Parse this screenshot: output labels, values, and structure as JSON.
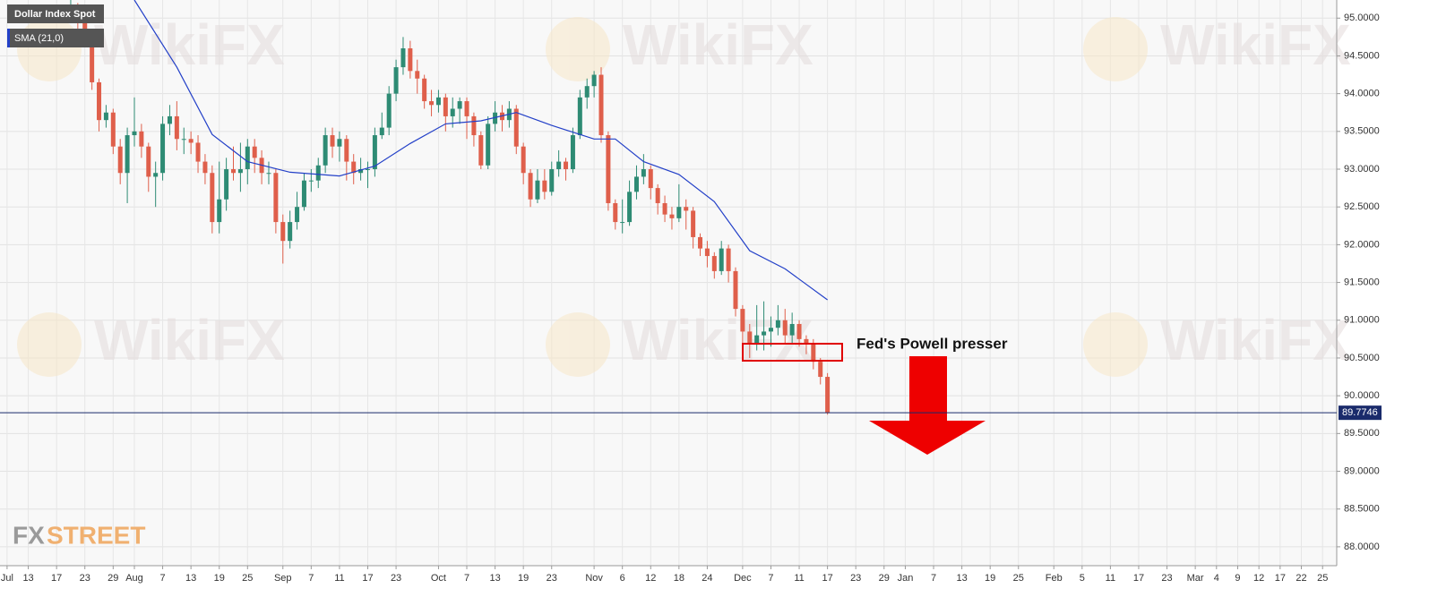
{
  "chart_data": {
    "type": "candlestick",
    "series": [
      {
        "name": "Dollar Index Spot",
        "up_color": "#2e8b74",
        "down_color": "#df5f4b",
        "x": [
          10,
          11,
          12,
          13,
          14,
          15,
          16,
          17,
          18,
          19,
          20,
          21,
          22,
          23,
          24,
          25,
          26,
          27,
          28,
          29,
          30,
          31,
          32,
          33,
          34,
          35,
          36,
          37,
          38,
          39,
          40,
          41,
          42,
          43,
          44,
          45,
          46,
          47,
          48,
          49,
          50,
          51,
          52,
          53,
          54,
          55,
          56,
          57,
          58,
          59,
          60,
          61,
          62,
          63,
          64,
          65,
          66,
          67,
          68,
          69,
          70,
          71,
          72,
          73,
          74,
          75,
          76,
          77,
          78,
          79,
          80,
          81,
          82,
          83,
          84,
          85,
          86,
          87,
          88,
          89,
          90,
          91,
          92,
          93,
          94,
          95,
          96,
          97,
          98,
          99,
          100,
          101,
          102,
          103,
          104,
          105,
          106,
          107,
          108,
          109,
          110,
          111,
          112,
          113,
          114,
          115,
          116,
          117
        ],
        "open": [
          95.05,
          95.15,
          94.95,
          94.8,
          94.15,
          93.65,
          93.75,
          93.3,
          92.95,
          93.45,
          93.5,
          93.3,
          92.9,
          92.95,
          93.6,
          93.7,
          93.4,
          93.4,
          93.35,
          93.1,
          92.95,
          92.3,
          92.6,
          93.0,
          92.95,
          93.0,
          93.3,
          93.15,
          92.95,
          92.95,
          92.3,
          92.05,
          92.3,
          92.5,
          92.85,
          92.85,
          93.05,
          93.45,
          93.3,
          93.4,
          93.1,
          92.95,
          93.0,
          93.0,
          93.45,
          93.55,
          94.0,
          94.35,
          94.6,
          94.3,
          94.2,
          93.9,
          93.85,
          93.95,
          93.7,
          93.8,
          93.9,
          93.7,
          93.45,
          93.05,
          93.6,
          93.75,
          93.65,
          93.8,
          93.3,
          92.95,
          92.6,
          92.85,
          92.7,
          93.0,
          93.1,
          93.0,
          93.45,
          93.95,
          94.1,
          94.25,
          93.45,
          92.55,
          92.3,
          92.3,
          92.7,
          92.9,
          93.0,
          92.75,
          92.55,
          92.4,
          92.35,
          92.5,
          92.45,
          92.1,
          91.95,
          91.85,
          91.65,
          91.95,
          91.65,
          91.15,
          90.85,
          90.7,
          90.8,
          90.85,
          90.9,
          91.0,
          90.8,
          90.95,
          90.75,
          90.7,
          90.45,
          90.25
        ],
        "high": [
          95.25,
          95.2,
          95.0,
          94.85,
          94.2,
          93.85,
          93.8,
          93.4,
          93.55,
          93.95,
          93.6,
          93.35,
          93.1,
          93.7,
          93.85,
          93.9,
          93.55,
          93.5,
          93.45,
          93.2,
          93.05,
          93.1,
          93.15,
          93.3,
          93.35,
          93.4,
          93.4,
          93.25,
          93.1,
          93.0,
          92.4,
          92.45,
          92.7,
          92.95,
          93.0,
          93.15,
          93.55,
          93.55,
          93.5,
          93.45,
          93.2,
          93.15,
          93.1,
          93.55,
          93.75,
          94.1,
          94.45,
          94.75,
          94.7,
          94.45,
          94.25,
          94.05,
          94.05,
          94.0,
          93.95,
          93.95,
          93.95,
          93.75,
          93.5,
          93.7,
          93.9,
          93.85,
          93.9,
          93.85,
          93.35,
          93.0,
          93.0,
          93.0,
          93.1,
          93.25,
          93.15,
          93.55,
          94.05,
          94.2,
          94.3,
          94.35,
          93.5,
          92.6,
          92.6,
          92.85,
          93.05,
          93.2,
          93.05,
          92.8,
          92.65,
          92.5,
          92.8,
          92.6,
          92.5,
          92.15,
          92.05,
          91.9,
          92.05,
          92.0,
          91.7,
          91.2,
          90.95,
          91.2,
          91.25,
          91.05,
          91.2,
          91.15,
          91.1,
          91.0,
          90.8,
          90.75,
          90.5,
          90.3
        ],
        "low": [
          94.95,
          94.85,
          94.7,
          94.05,
          93.5,
          93.55,
          93.2,
          92.8,
          92.55,
          93.3,
          93.15,
          92.7,
          92.5,
          92.85,
          93.45,
          93.25,
          93.2,
          93.2,
          92.95,
          92.8,
          92.15,
          92.15,
          92.45,
          92.85,
          92.7,
          92.8,
          92.95,
          92.8,
          92.8,
          92.15,
          91.75,
          91.95,
          92.2,
          92.45,
          92.7,
          92.75,
          92.95,
          93.15,
          93.1,
          92.85,
          92.8,
          92.85,
          92.75,
          92.9,
          93.4,
          93.45,
          93.9,
          94.25,
          94.2,
          94.0,
          93.8,
          93.7,
          93.75,
          93.5,
          93.55,
          93.6,
          93.4,
          93.3,
          93.0,
          93.0,
          93.5,
          93.5,
          93.55,
          93.2,
          92.8,
          92.5,
          92.55,
          92.6,
          92.65,
          92.9,
          92.85,
          92.95,
          93.4,
          93.8,
          93.95,
          93.35,
          92.45,
          92.2,
          92.15,
          92.25,
          92.6,
          92.8,
          92.6,
          92.4,
          92.3,
          92.2,
          92.3,
          92.2,
          91.95,
          91.85,
          91.7,
          91.55,
          91.6,
          91.5,
          91.05,
          90.7,
          90.5,
          90.6,
          90.6,
          90.65,
          90.8,
          90.7,
          90.7,
          90.65,
          90.55,
          90.35,
          90.15,
          89.75
        ],
        "close": [
          95.15,
          94.95,
          94.8,
          94.15,
          93.65,
          93.75,
          93.3,
          92.95,
          93.45,
          93.5,
          93.3,
          92.9,
          92.95,
          93.6,
          93.7,
          93.4,
          93.4,
          93.35,
          93.1,
          92.95,
          92.3,
          92.6,
          93.0,
          92.95,
          93.0,
          93.3,
          93.15,
          92.95,
          92.95,
          92.3,
          92.05,
          92.3,
          92.5,
          92.85,
          92.85,
          93.05,
          93.45,
          93.3,
          93.4,
          93.1,
          92.95,
          93.0,
          93.0,
          93.45,
          93.55,
          94.0,
          94.35,
          94.6,
          94.3,
          94.2,
          93.9,
          93.85,
          93.95,
          93.7,
          93.8,
          93.9,
          93.7,
          93.45,
          93.05,
          93.6,
          93.75,
          93.65,
          93.8,
          93.3,
          92.95,
          92.6,
          92.85,
          92.7,
          93.0,
          93.1,
          93.0,
          93.45,
          93.95,
          94.1,
          94.25,
          93.45,
          92.55,
          92.3,
          92.3,
          92.7,
          92.9,
          93.0,
          92.75,
          92.55,
          92.4,
          92.35,
          92.5,
          92.45,
          92.1,
          91.95,
          91.85,
          91.65,
          91.95,
          91.65,
          91.15,
          90.85,
          90.7,
          90.8,
          90.85,
          90.9,
          91.0,
          90.8,
          90.95,
          90.75,
          90.7,
          90.45,
          90.25,
          89.7746
        ]
      }
    ],
    "overlays": [
      {
        "name": "SMA (21,0)",
        "color": "#2340c8",
        "x": [
          19,
          25,
          30,
          35,
          41,
          48,
          53,
          58,
          63,
          68,
          73,
          78,
          84,
          87,
          91,
          96,
          101,
          106,
          111,
          117
        ],
        "values": [
          95.24,
          94.35,
          93.46,
          93.1,
          92.96,
          92.91,
          93.04,
          93.34,
          93.6,
          93.64,
          93.75,
          93.58,
          93.4,
          93.4,
          93.1,
          92.93,
          92.57,
          91.92,
          91.68,
          91.27
        ]
      }
    ],
    "last_price": 89.7746,
    "last_price_color": "#1a2b6b",
    "annotation": "Fed's Powell presser",
    "watermark": "WikiFX",
    "logo": [
      "FX",
      "STREET"
    ],
    "grid": true,
    "xlim": [
      0,
      189
    ],
    "ylim": [
      87.75,
      95.24
    ],
    "yticks": [
      {
        "value": 88,
        "label": "88.0000"
      },
      {
        "value": 88.5,
        "label": "88.5000"
      },
      {
        "value": 89,
        "label": "89.0000"
      },
      {
        "value": 89.5,
        "label": "89.5000"
      },
      {
        "value": 90,
        "label": "90.0000"
      },
      {
        "value": 90.5,
        "label": "90.5000"
      },
      {
        "value": 91,
        "label": "91.0000"
      },
      {
        "value": 91.5,
        "label": "91.5000"
      },
      {
        "value": 92,
        "label": "92.0000"
      },
      {
        "value": 92.5,
        "label": "92.5000"
      },
      {
        "value": 93,
        "label": "93.0000"
      },
      {
        "value": 93.5,
        "label": "93.5000"
      },
      {
        "value": 94,
        "label": "94.0000"
      },
      {
        "value": 94.5,
        "label": "94.5000"
      },
      {
        "value": 95,
        "label": "95.0000"
      }
    ],
    "xticks": [
      {
        "value": 1,
        "label": "Jul"
      },
      {
        "value": 4,
        "label": "13"
      },
      {
        "value": 8,
        "label": "17"
      },
      {
        "value": 12,
        "label": "23"
      },
      {
        "value": 16,
        "label": "29"
      },
      {
        "value": 19,
        "label": "Aug"
      },
      {
        "value": 23,
        "label": "7"
      },
      {
        "value": 27,
        "label": "13"
      },
      {
        "value": 31,
        "label": "19"
      },
      {
        "value": 35,
        "label": "25"
      },
      {
        "value": 40,
        "label": "Sep"
      },
      {
        "value": 44,
        "label": "7"
      },
      {
        "value": 48,
        "label": "11"
      },
      {
        "value": 52,
        "label": "17"
      },
      {
        "value": 56,
        "label": "23"
      },
      {
        "value": 62,
        "label": "Oct"
      },
      {
        "value": 66,
        "label": "7"
      },
      {
        "value": 70,
        "label": "13"
      },
      {
        "value": 74,
        "label": "19"
      },
      {
        "value": 78,
        "label": "23"
      },
      {
        "value": 84,
        "label": "Nov"
      },
      {
        "value": 88,
        "label": "6"
      },
      {
        "value": 92,
        "label": "12"
      },
      {
        "value": 96,
        "label": "18"
      },
      {
        "value": 100,
        "label": "24"
      },
      {
        "value": 105,
        "label": "Dec"
      },
      {
        "value": 109,
        "label": "7"
      },
      {
        "value": 113,
        "label": "11"
      },
      {
        "value": 117,
        "label": "17"
      },
      {
        "value": 121,
        "label": "23"
      },
      {
        "value": 125,
        "label": "29"
      },
      {
        "value": 128,
        "label": "Jan"
      },
      {
        "value": 132,
        "label": "7"
      },
      {
        "value": 136,
        "label": "13"
      },
      {
        "value": 140,
        "label": "19"
      },
      {
        "value": 144,
        "label": "25"
      },
      {
        "value": 149,
        "label": "Feb"
      },
      {
        "value": 153,
        "label": "5"
      },
      {
        "value": 157,
        "label": "11"
      },
      {
        "value": 161,
        "label": "17"
      },
      {
        "value": 165,
        "label": "23"
      },
      {
        "value": 169,
        "label": "Mar"
      },
      {
        "value": 172,
        "label": "4"
      },
      {
        "value": 175,
        "label": "9"
      },
      {
        "value": 178,
        "label": "12"
      },
      {
        "value": 181,
        "label": "17"
      },
      {
        "value": 184,
        "label": "22"
      },
      {
        "value": 187,
        "label": "25"
      }
    ]
  }
}
